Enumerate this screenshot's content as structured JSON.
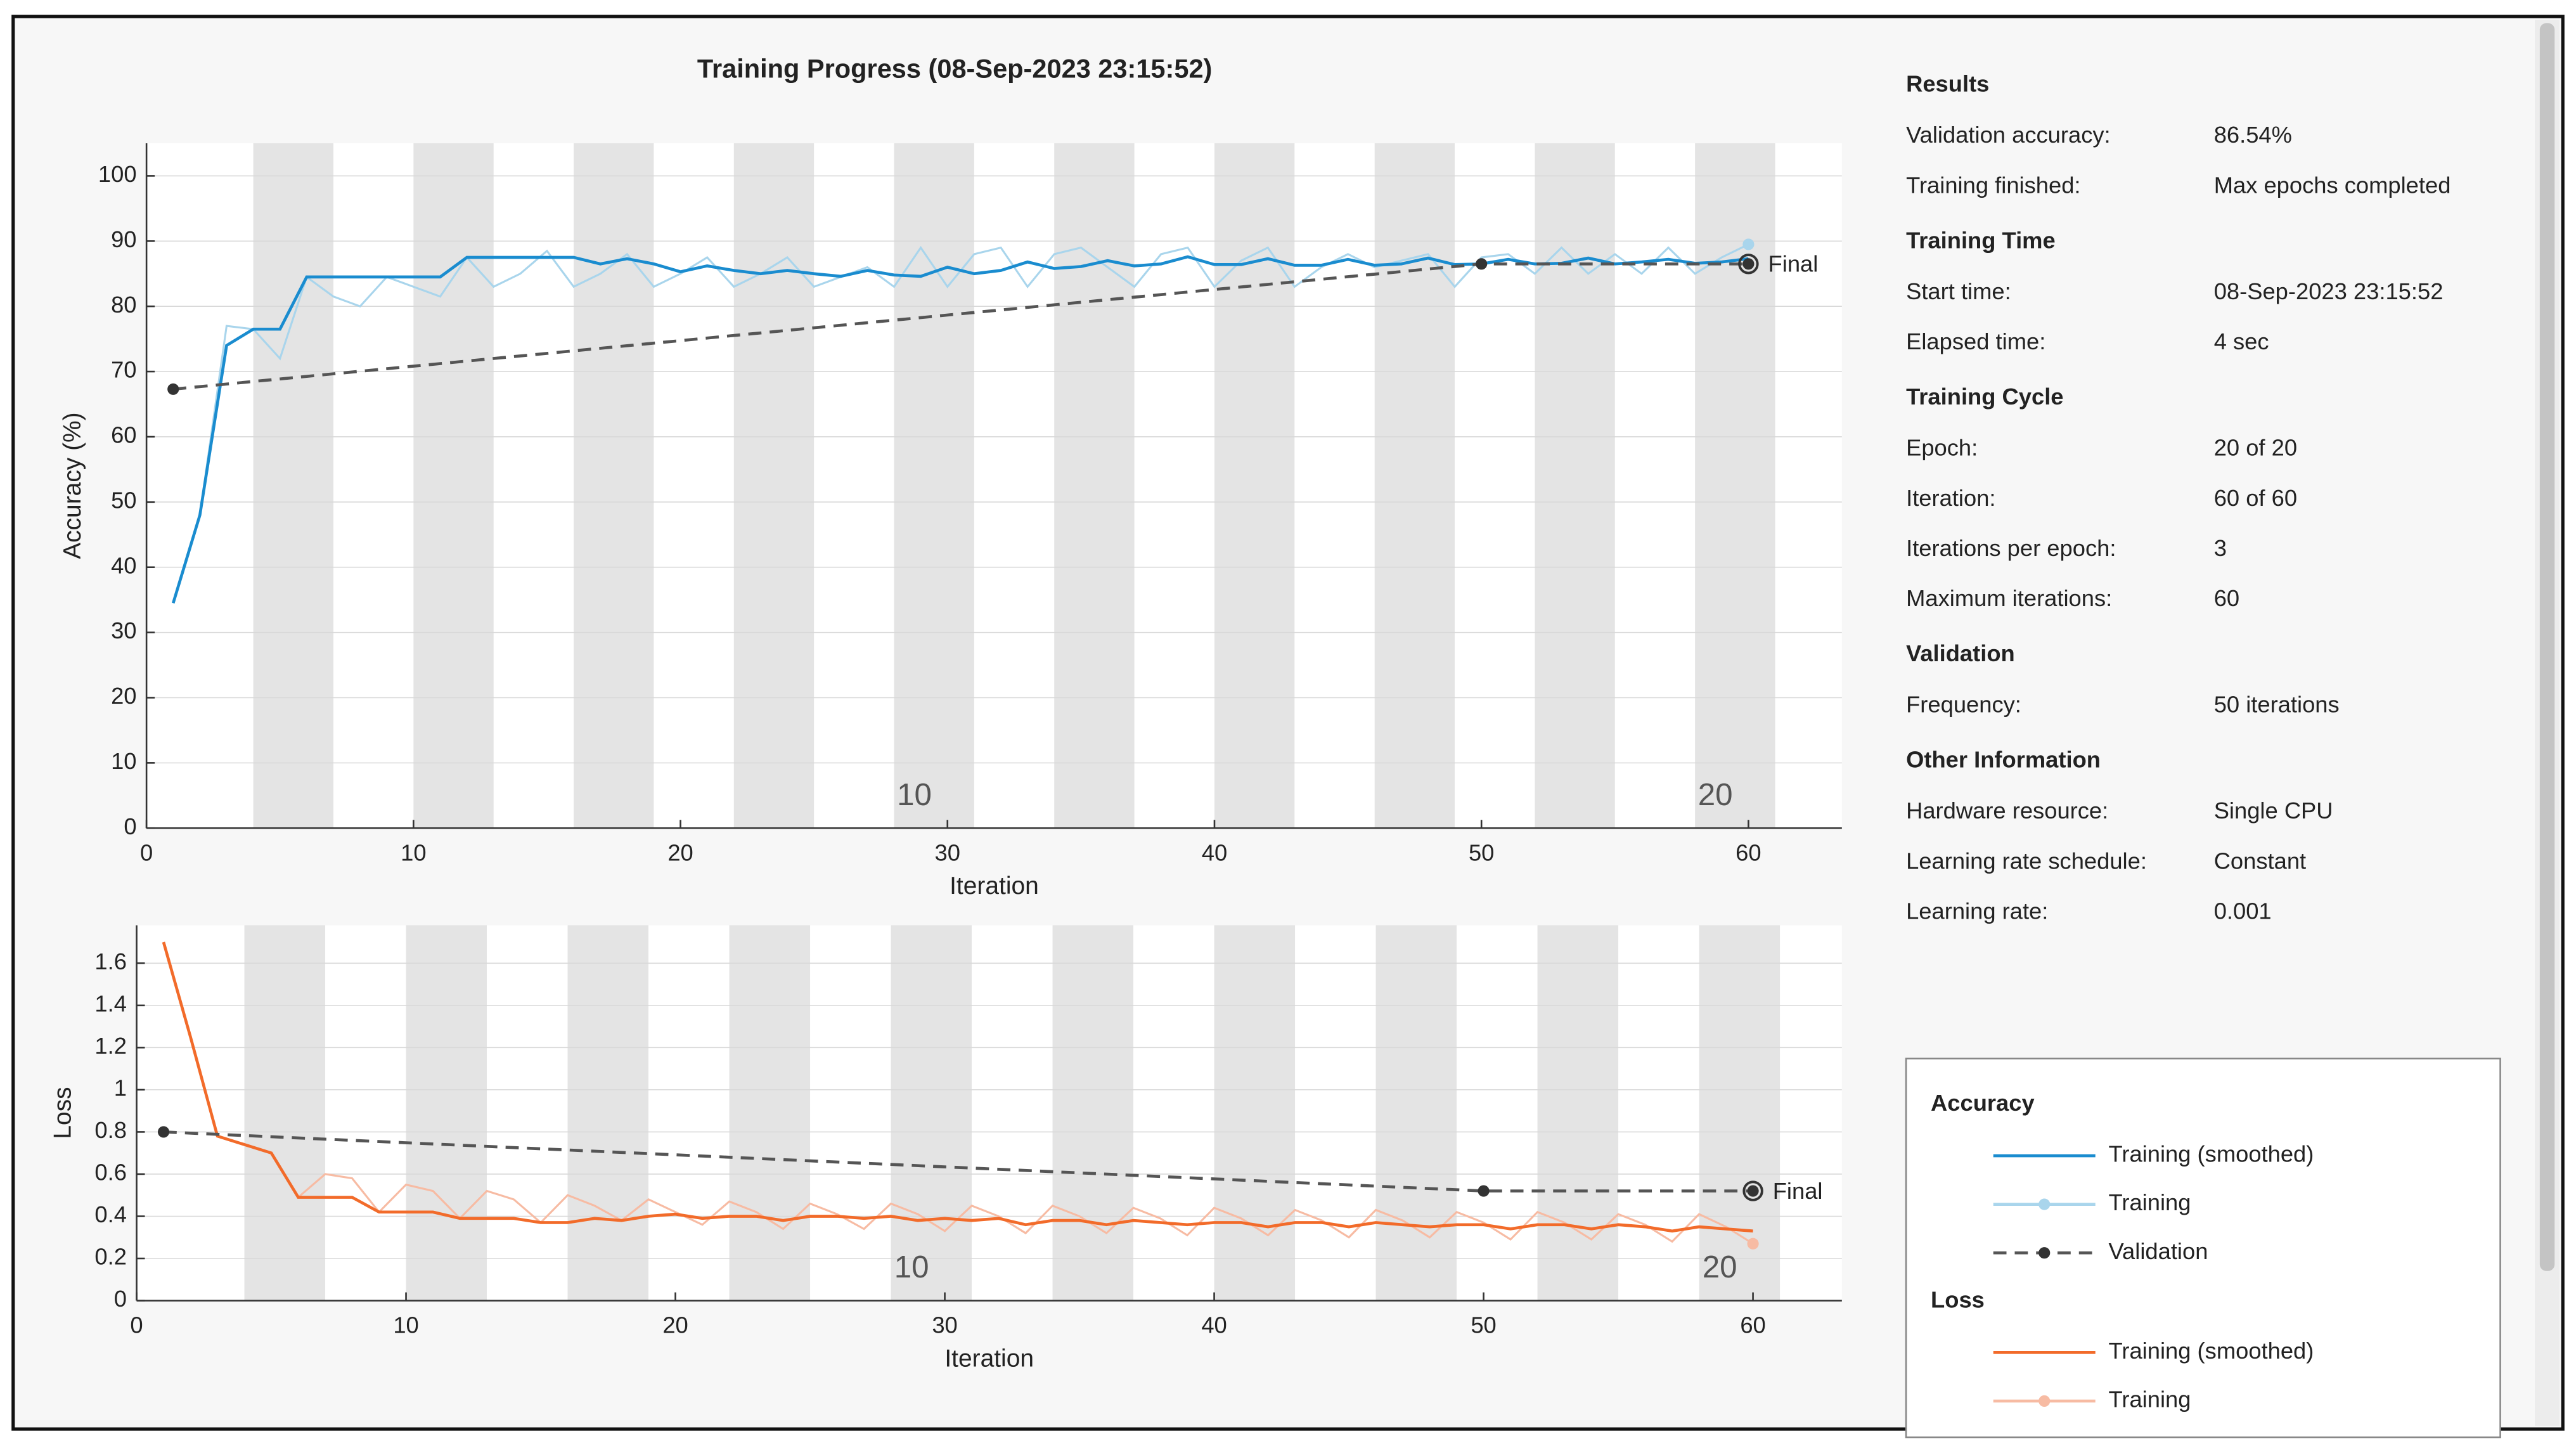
{
  "title": "Training Progress (08-Sep-2023 23:15:52)",
  "chart_data": [
    {
      "type": "line",
      "legend_title": "Accuracy",
      "y_label": "Accuracy (%)",
      "x_label": "Iteration",
      "annotation": "Final",
      "xlim": [
        0,
        63.5
      ],
      "xticks": [
        0,
        10,
        20,
        30,
        40,
        50,
        60
      ],
      "ylim": [
        0,
        105
      ],
      "yticks": [
        0,
        10,
        20,
        30,
        40,
        50,
        60,
        70,
        80,
        90,
        100
      ],
      "grid": true,
      "epoch_ticks": [
        10,
        20
      ],
      "x": [
        1,
        2,
        3,
        4,
        5,
        6,
        7,
        8,
        9,
        10,
        11,
        12,
        13,
        14,
        15,
        16,
        17,
        18,
        19,
        20,
        21,
        22,
        23,
        24,
        25,
        26,
        27,
        28,
        29,
        30,
        31,
        32,
        33,
        34,
        35,
        36,
        37,
        38,
        39,
        40,
        41,
        42,
        43,
        44,
        45,
        46,
        47,
        48,
        49,
        50,
        51,
        52,
        53,
        54,
        55,
        56,
        57,
        58,
        59,
        60
      ],
      "series": [
        {
          "name": "Training (smoothed)",
          "color": "#1a8ccf",
          "style": "solid",
          "values": [
            34.5,
            48,
            74,
            76.5,
            76.5,
            84.5,
            84.5,
            84.5,
            84.5,
            84.5,
            84.5,
            87.5,
            87.5,
            87.5,
            87.5,
            87.5,
            86.5,
            87.3,
            86.5,
            85.3,
            86.2,
            85.5,
            85,
            85.5,
            85,
            84.6,
            85.5,
            84.8,
            84.6,
            86,
            85,
            85.5,
            86.8,
            85.8,
            86.1,
            87,
            86.2,
            86.5,
            87.6,
            86.4,
            86.4,
            87.3,
            86.3,
            86.3,
            87.2,
            86.3,
            86.5,
            87.4,
            86.4,
            86.5,
            87.2,
            86.5,
            86.6,
            87.4,
            86.5,
            86.8,
            87.2,
            86.6,
            86.8,
            87.3
          ]
        },
        {
          "name": "Training",
          "color": "#a9d5ec",
          "style": "raw",
          "values": [
            34.5,
            48,
            77,
            76.5,
            72,
            84.5,
            81.5,
            80,
            84.5,
            83,
            81.5,
            87.5,
            83,
            85,
            88.5,
            83,
            85,
            88,
            83,
            85,
            87.5,
            83,
            85,
            87.5,
            83,
            84.5,
            86,
            83,
            89,
            83,
            88,
            89,
            83,
            88,
            89,
            86,
            83,
            88,
            89,
            83,
            87,
            89,
            83,
            86,
            88,
            86,
            87,
            88,
            83,
            87.5,
            88,
            85,
            89,
            85,
            88,
            85,
            89,
            85,
            87.5,
            89.5
          ]
        },
        {
          "name": "Validation",
          "color": "#555555",
          "style": "dashed",
          "x": [
            1,
            50,
            60
          ],
          "values": [
            67.3,
            86.5,
            86.5
          ]
        }
      ]
    },
    {
      "type": "line",
      "legend_title": "Loss",
      "y_label": "Loss",
      "x_label": "Iteration",
      "annotation": "Final",
      "xlim": [
        0,
        63.3
      ],
      "xticks": [
        0,
        10,
        20,
        30,
        40,
        50,
        60
      ],
      "ylim": [
        0,
        1.78
      ],
      "yticks": [
        0,
        0.2,
        0.4,
        0.6,
        0.8,
        1,
        1.2,
        1.4,
        1.6
      ],
      "grid": true,
      "epoch_ticks": [
        10,
        20
      ],
      "x": [
        1,
        2,
        3,
        4,
        5,
        6,
        7,
        8,
        9,
        10,
        11,
        12,
        13,
        14,
        15,
        16,
        17,
        18,
        19,
        20,
        21,
        22,
        23,
        24,
        25,
        26,
        27,
        28,
        29,
        30,
        31,
        32,
        33,
        34,
        35,
        36,
        37,
        38,
        39,
        40,
        41,
        42,
        43,
        44,
        45,
        46,
        47,
        48,
        49,
        50,
        51,
        52,
        53,
        54,
        55,
        56,
        57,
        58,
        59,
        60
      ],
      "series": [
        {
          "name": "Training (smoothed)",
          "color": "#f26b2a",
          "style": "solid",
          "values": [
            1.7,
            1.25,
            0.78,
            0.74,
            0.7,
            0.49,
            0.49,
            0.49,
            0.42,
            0.42,
            0.42,
            0.39,
            0.39,
            0.39,
            0.37,
            0.37,
            0.39,
            0.38,
            0.4,
            0.41,
            0.39,
            0.4,
            0.4,
            0.38,
            0.4,
            0.4,
            0.39,
            0.4,
            0.38,
            0.39,
            0.38,
            0.39,
            0.36,
            0.38,
            0.38,
            0.36,
            0.38,
            0.37,
            0.36,
            0.37,
            0.37,
            0.35,
            0.37,
            0.37,
            0.35,
            0.37,
            0.36,
            0.35,
            0.36,
            0.36,
            0.34,
            0.36,
            0.36,
            0.34,
            0.36,
            0.35,
            0.33,
            0.35,
            0.34,
            0.33
          ]
        },
        {
          "name": "Training",
          "color": "#f7bba3",
          "style": "raw",
          "values": [
            1.7,
            1.25,
            0.78,
            0.74,
            0.7,
            0.49,
            0.6,
            0.58,
            0.42,
            0.55,
            0.52,
            0.39,
            0.52,
            0.48,
            0.37,
            0.5,
            0.45,
            0.38,
            0.48,
            0.42,
            0.36,
            0.47,
            0.42,
            0.34,
            0.46,
            0.41,
            0.34,
            0.46,
            0.41,
            0.33,
            0.45,
            0.4,
            0.32,
            0.45,
            0.4,
            0.32,
            0.44,
            0.39,
            0.31,
            0.44,
            0.39,
            0.31,
            0.43,
            0.38,
            0.3,
            0.43,
            0.38,
            0.3,
            0.42,
            0.37,
            0.29,
            0.42,
            0.37,
            0.29,
            0.41,
            0.36,
            0.28,
            0.41,
            0.35,
            0.27
          ]
        },
        {
          "name": "Validation",
          "color": "#555555",
          "style": "dashed",
          "x": [
            1,
            50,
            60
          ],
          "values": [
            0.8,
            0.52,
            0.52
          ]
        }
      ]
    }
  ],
  "panel": {
    "sections": [
      {
        "title": "Results",
        "rows": [
          [
            "Validation accuracy:",
            "86.54%"
          ],
          [
            "Training finished:",
            "Max epochs completed"
          ]
        ]
      },
      {
        "title": "Training Time",
        "rows": [
          [
            "Start time:",
            "08-Sep-2023 23:15:52"
          ],
          [
            "Elapsed time:",
            "4 sec"
          ]
        ]
      },
      {
        "title": "Training Cycle",
        "rows": [
          [
            "Epoch:",
            "20 of 20"
          ],
          [
            "Iteration:",
            "60 of 60"
          ],
          [
            "Iterations per epoch:",
            3
          ],
          [
            "Maximum iterations:",
            60
          ]
        ]
      },
      {
        "title": "Validation",
        "rows": [
          [
            "Frequency:",
            "50 iterations"
          ]
        ]
      },
      {
        "title": "Other Information",
        "rows": [
          [
            "Hardware resource:",
            "Single CPU"
          ],
          [
            "Learning rate schedule:",
            "Constant"
          ],
          [
            "Learning rate:",
            "0.001"
          ]
        ]
      }
    ]
  }
}
